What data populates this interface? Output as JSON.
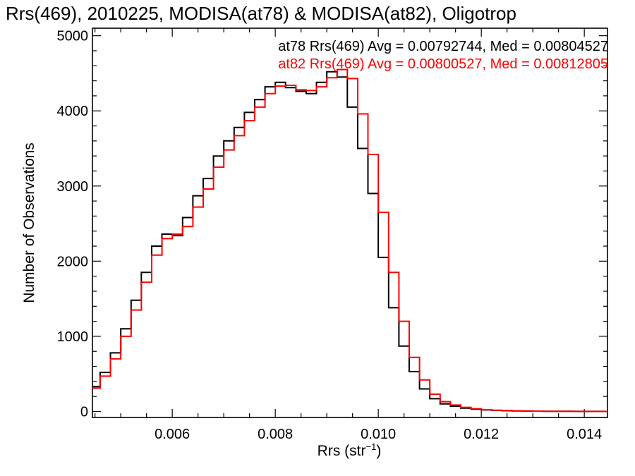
{
  "chart_data": {
    "type": "line",
    "title": "Rrs(469), 2010225, MODISA(at78) & MODISA(at82), Oligotrop",
    "xlabel_main": "Rrs (str",
    "xlabel_sup": "−1",
    "xlabel_close": ")",
    "ylabel": "Number of Observations",
    "xlim": [
      0.00445,
      0.01445
    ],
    "ylim": [
      -80,
      5100
    ],
    "x_ticks": [
      0.006,
      0.008,
      0.01,
      0.012,
      0.014
    ],
    "x_tick_labels": [
      "0.006",
      "0.008",
      "0.010",
      "0.012",
      "0.014"
    ],
    "y_ticks": [
      0,
      1000,
      2000,
      3000,
      4000,
      5000
    ],
    "y_tick_labels": [
      "0",
      "1000",
      "2000",
      "3000",
      "4000",
      "5000"
    ],
    "legend": [
      {
        "text": "at78 Rrs(469) Avg = 0.00792744, Med = 0.00804527",
        "color": "#000000"
      },
      {
        "text": "at82 Rrs(469) Avg = 0.00800527, Med = 0.00812805",
        "color": "#ff0000"
      }
    ],
    "series": [
      {
        "name": "at78",
        "color": "#000000",
        "x": [
          0.0045,
          0.0047,
          0.0049,
          0.0051,
          0.0053,
          0.0055,
          0.0057,
          0.0059,
          0.0061,
          0.0063,
          0.0065,
          0.0067,
          0.0069,
          0.0071,
          0.0073,
          0.0075,
          0.0077,
          0.0079,
          0.0081,
          0.0083,
          0.0085,
          0.0087,
          0.0089,
          0.0091,
          0.0093,
          0.0095,
          0.0097,
          0.0099,
          0.0101,
          0.0103,
          0.0105,
          0.0107,
          0.0109,
          0.0111,
          0.0113,
          0.0115,
          0.0117,
          0.0119,
          0.0121,
          0.0123,
          0.0125,
          0.0127,
          0.0129,
          0.0131,
          0.0133,
          0.0135,
          0.0137,
          0.0139,
          0.0141,
          0.0143,
          0.0145
        ],
        "values": [
          330,
          520,
          780,
          1100,
          1480,
          1850,
          2200,
          2360,
          2340,
          2580,
          2870,
          3100,
          3400,
          3600,
          3780,
          3980,
          4150,
          4320,
          4380,
          4310,
          4260,
          4230,
          4380,
          4520,
          4450,
          4050,
          3500,
          2900,
          2050,
          1380,
          870,
          530,
          300,
          170,
          100,
          70,
          45,
          30,
          20,
          14,
          10,
          7,
          5,
          4,
          3,
          2,
          2,
          1,
          1,
          1,
          0
        ]
      },
      {
        "name": "at82",
        "color": "#ff0000",
        "x": [
          0.0045,
          0.0047,
          0.0049,
          0.0051,
          0.0053,
          0.0055,
          0.0057,
          0.0059,
          0.0061,
          0.0063,
          0.0065,
          0.0067,
          0.0069,
          0.0071,
          0.0073,
          0.0075,
          0.0077,
          0.0079,
          0.0081,
          0.0083,
          0.0085,
          0.0087,
          0.0089,
          0.0091,
          0.0093,
          0.0095,
          0.0097,
          0.0099,
          0.0101,
          0.0103,
          0.0105,
          0.0107,
          0.0109,
          0.0111,
          0.0113,
          0.0115,
          0.0117,
          0.0119,
          0.0121,
          0.0123,
          0.0125,
          0.0127,
          0.0129,
          0.0131,
          0.0133,
          0.0135,
          0.0137,
          0.0139,
          0.0141,
          0.0143,
          0.0145
        ],
        "values": [
          310,
          470,
          700,
          1000,
          1350,
          1720,
          2080,
          2300,
          2360,
          2460,
          2720,
          2960,
          3250,
          3480,
          3670,
          3870,
          4050,
          4230,
          4330,
          4340,
          4280,
          4270,
          4320,
          4440,
          4550,
          4430,
          3960,
          3420,
          2650,
          1850,
          1200,
          720,
          420,
          230,
          130,
          85,
          55,
          36,
          24,
          16,
          11,
          8,
          6,
          4,
          3,
          2,
          2,
          1,
          1,
          1,
          0
        ]
      }
    ]
  }
}
